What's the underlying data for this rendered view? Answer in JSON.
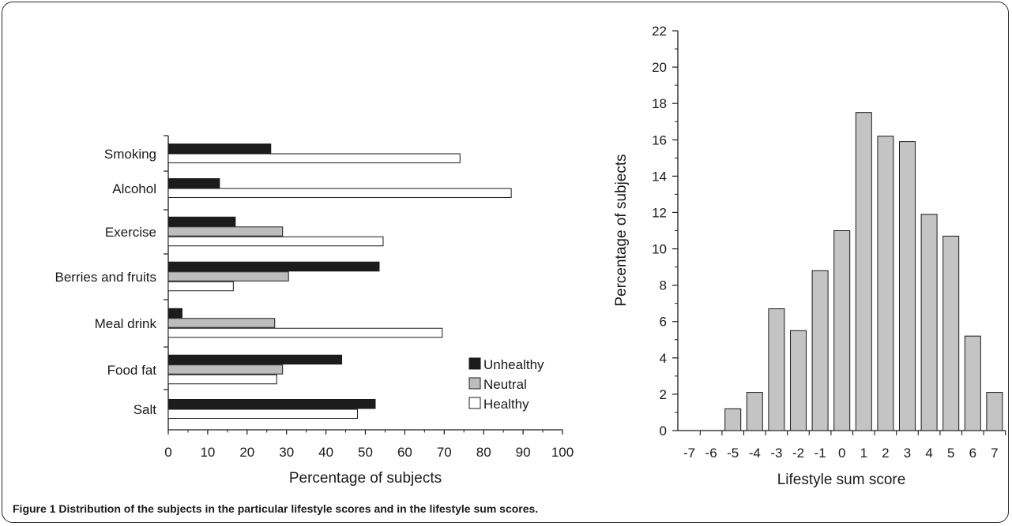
{
  "caption": {
    "prefix": "Figure 1",
    "text": "Distribution of the subjects in the particular lifestyle scores and in the lifestyle sum scores."
  },
  "colors": {
    "unhealthy": "#1c1c1c",
    "neutral": "#bdbdbd",
    "healthy": "#ffffff",
    "outline": "#1a1a1a",
    "histogram": "#c4c4c4"
  },
  "chart_data": [
    {
      "type": "bar",
      "orientation": "horizontal",
      "categories": [
        "Smoking",
        "Alcohol",
        "Exercise",
        "Berries and fruits",
        "Meal drink",
        "Food fat",
        "Salt"
      ],
      "series": [
        {
          "name": "Unhealthy",
          "values": [
            26,
            13,
            17,
            53.5,
            3.5,
            44,
            52.5
          ]
        },
        {
          "name": "Neutral",
          "values": [
            null,
            null,
            29,
            30.5,
            27,
            29,
            null
          ]
        },
        {
          "name": "Healthy",
          "values": [
            74,
            87,
            54.5,
            16.5,
            69.5,
            27.5,
            48
          ]
        }
      ],
      "xlabel": "Percentage of subjects",
      "ylabel": "",
      "xlim": [
        0,
        100
      ],
      "xticks": [
        0,
        10,
        20,
        30,
        40,
        50,
        60,
        70,
        80,
        90,
        100
      ],
      "legend_position": "bottom-right"
    },
    {
      "type": "bar",
      "categories": [
        "-7",
        "-6",
        "-5",
        "-4",
        "-3",
        "-2",
        "-1",
        "0",
        "1",
        "2",
        "3",
        "4",
        "5",
        "6",
        "7"
      ],
      "values": [
        0,
        0,
        1.2,
        2.1,
        6.7,
        5.5,
        8.8,
        11.0,
        17.5,
        16.2,
        15.9,
        11.9,
        10.7,
        5.2,
        2.1
      ],
      "xlabel": "Lifestyle sum score",
      "ylabel": "Percentage of subjects",
      "ylim": [
        0,
        22
      ],
      "yticks": [
        0,
        2,
        4,
        6,
        8,
        10,
        12,
        14,
        16,
        18,
        20,
        22
      ]
    }
  ]
}
